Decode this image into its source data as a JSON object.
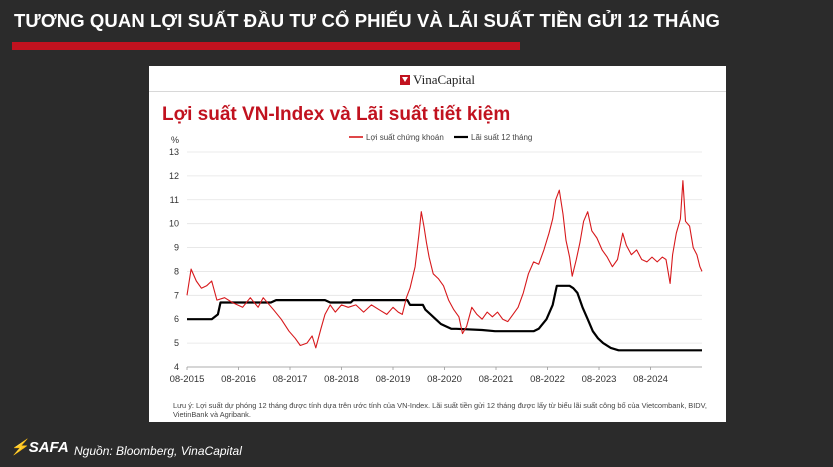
{
  "slide": {
    "title": "TƯƠNG QUAN LỢI SUẤT ĐẦU TƯ CỔ PHIẾU VÀ LÃI SUẤT TIỀN GỬI 12 THÁNG",
    "accent_color": "#c1121f"
  },
  "panel": {
    "logo_text": "VinaCapital",
    "note": "Lưu ý: Lợi suất dự phóng 12 tháng được tính dựa trên ước tính của VN-Index. Lãi suất tiền gửi 12 tháng được lấy từ biểu lãi suất công bố của Vietcombank, BIDV, VietinBank và Agribank."
  },
  "footer": {
    "logo_text": "SAFA",
    "source": "Nguồn: Bloomberg, VinaCapital"
  },
  "chart_data": {
    "type": "line",
    "title": "Lợi suất VN-Index và Lãi suất tiết kiệm",
    "ylabel": "%",
    "xlabel": "",
    "ylim": [
      4,
      13
    ],
    "yticks": [
      4,
      5,
      6,
      7,
      8,
      9,
      10,
      11,
      12,
      13
    ],
    "xticks": [
      "08-2015",
      "08-2016",
      "08-2017",
      "08-2018",
      "08-2019",
      "08-2020",
      "08-2021",
      "08-2022",
      "08-2023",
      "08-2024"
    ],
    "grid": "horizontal",
    "legend": "top-center",
    "series": [
      {
        "name": "Lợi suất chứng khoán",
        "color": "#d7191c",
        "points": [
          [
            2015.62,
            7.0
          ],
          [
            2015.7,
            8.1
          ],
          [
            2015.8,
            7.6
          ],
          [
            2015.9,
            7.3
          ],
          [
            2016.0,
            7.4
          ],
          [
            2016.1,
            7.6
          ],
          [
            2016.2,
            6.8
          ],
          [
            2016.35,
            6.9
          ],
          [
            2016.5,
            6.7
          ],
          [
            2016.7,
            6.5
          ],
          [
            2016.85,
            6.9
          ],
          [
            2017.0,
            6.5
          ],
          [
            2017.1,
            6.9
          ],
          [
            2017.3,
            6.4
          ],
          [
            2017.45,
            6.0
          ],
          [
            2017.6,
            5.5
          ],
          [
            2017.72,
            5.2
          ],
          [
            2017.82,
            4.9
          ],
          [
            2017.95,
            5.0
          ],
          [
            2018.05,
            5.3
          ],
          [
            2018.12,
            4.8
          ],
          [
            2018.22,
            5.6
          ],
          [
            2018.3,
            6.2
          ],
          [
            2018.4,
            6.6
          ],
          [
            2018.5,
            6.3
          ],
          [
            2018.62,
            6.6
          ],
          [
            2018.75,
            6.5
          ],
          [
            2018.9,
            6.6
          ],
          [
            2019.05,
            6.3
          ],
          [
            2019.2,
            6.6
          ],
          [
            2019.35,
            6.4
          ],
          [
            2019.5,
            6.2
          ],
          [
            2019.62,
            6.5
          ],
          [
            2019.72,
            6.3
          ],
          [
            2019.8,
            6.2
          ],
          [
            2019.88,
            6.9
          ],
          [
            2019.95,
            7.3
          ],
          [
            2020.05,
            8.2
          ],
          [
            2020.12,
            9.5
          ],
          [
            2020.17,
            10.5
          ],
          [
            2020.22,
            9.9
          ],
          [
            2020.27,
            9.2
          ],
          [
            2020.32,
            8.6
          ],
          [
            2020.4,
            7.9
          ],
          [
            2020.5,
            7.7
          ],
          [
            2020.6,
            7.4
          ],
          [
            2020.7,
            6.8
          ],
          [
            2020.8,
            6.4
          ],
          [
            2020.9,
            6.1
          ],
          [
            2020.97,
            5.4
          ],
          [
            2021.05,
            5.7
          ],
          [
            2021.15,
            6.5
          ],
          [
            2021.25,
            6.2
          ],
          [
            2021.35,
            6.0
          ],
          [
            2021.45,
            6.3
          ],
          [
            2021.55,
            6.1
          ],
          [
            2021.65,
            6.3
          ],
          [
            2021.75,
            6.0
          ],
          [
            2021.85,
            5.9
          ],
          [
            2021.95,
            6.2
          ],
          [
            2022.05,
            6.5
          ],
          [
            2022.15,
            7.1
          ],
          [
            2022.25,
            7.9
          ],
          [
            2022.35,
            8.4
          ],
          [
            2022.45,
            8.3
          ],
          [
            2022.55,
            8.9
          ],
          [
            2022.65,
            9.6
          ],
          [
            2022.72,
            10.2
          ],
          [
            2022.78,
            11.0
          ],
          [
            2022.85,
            11.4
          ],
          [
            2022.92,
            10.4
          ],
          [
            2022.98,
            9.3
          ],
          [
            2023.05,
            8.6
          ],
          [
            2023.1,
            7.8
          ],
          [
            2023.18,
            8.5
          ],
          [
            2023.25,
            9.2
          ],
          [
            2023.32,
            10.1
          ],
          [
            2023.4,
            10.5
          ],
          [
            2023.48,
            9.7
          ],
          [
            2023.58,
            9.4
          ],
          [
            2023.68,
            8.9
          ],
          [
            2023.78,
            8.6
          ],
          [
            2023.88,
            8.2
          ],
          [
            2023.98,
            8.5
          ],
          [
            2024.08,
            9.6
          ],
          [
            2024.15,
            9.1
          ],
          [
            2024.25,
            8.7
          ],
          [
            2024.35,
            8.9
          ],
          [
            2024.45,
            8.5
          ],
          [
            2024.55,
            8.4
          ],
          [
            2024.65,
            8.6
          ],
          [
            2024.75,
            8.4
          ],
          [
            2024.85,
            8.6
          ],
          [
            2024.92,
            8.5
          ],
          [
            2025.0,
            7.5
          ],
          [
            2025.05,
            8.7
          ],
          [
            2025.12,
            9.6
          ],
          [
            2025.2,
            10.2
          ],
          [
            2025.25,
            11.8
          ],
          [
            2025.3,
            10.1
          ],
          [
            2025.38,
            9.9
          ],
          [
            2025.45,
            9.0
          ],
          [
            2025.52,
            8.7
          ],
          [
            2025.58,
            8.2
          ],
          [
            2025.62,
            8.0
          ]
        ]
      },
      {
        "name": "Lãi suất 12 tháng",
        "color": "#000000",
        "points": [
          [
            2015.62,
            6.0
          ],
          [
            2016.1,
            6.0
          ],
          [
            2016.22,
            6.2
          ],
          [
            2016.27,
            6.7
          ],
          [
            2017.25,
            6.7
          ],
          [
            2017.35,
            6.8
          ],
          [
            2018.3,
            6.8
          ],
          [
            2018.4,
            6.7
          ],
          [
            2018.8,
            6.7
          ],
          [
            2018.85,
            6.8
          ],
          [
            2019.9,
            6.8
          ],
          [
            2019.95,
            6.6
          ],
          [
            2020.2,
            6.6
          ],
          [
            2020.25,
            6.4
          ],
          [
            2020.35,
            6.2
          ],
          [
            2020.45,
            6.0
          ],
          [
            2020.55,
            5.8
          ],
          [
            2020.65,
            5.7
          ],
          [
            2020.75,
            5.6
          ],
          [
            2020.85,
            5.6
          ],
          [
            2021.35,
            5.55
          ],
          [
            2021.6,
            5.5
          ],
          [
            2022.35,
            5.5
          ],
          [
            2022.45,
            5.6
          ],
          [
            2022.6,
            6.0
          ],
          [
            2022.72,
            6.6
          ],
          [
            2022.8,
            7.4
          ],
          [
            2023.05,
            7.4
          ],
          [
            2023.12,
            7.3
          ],
          [
            2023.2,
            7.1
          ],
          [
            2023.3,
            6.5
          ],
          [
            2023.4,
            6.0
          ],
          [
            2023.5,
            5.5
          ],
          [
            2023.6,
            5.2
          ],
          [
            2023.7,
            5.0
          ],
          [
            2023.85,
            4.8
          ],
          [
            2024.0,
            4.7
          ],
          [
            2025.62,
            4.7
          ]
        ]
      }
    ]
  }
}
